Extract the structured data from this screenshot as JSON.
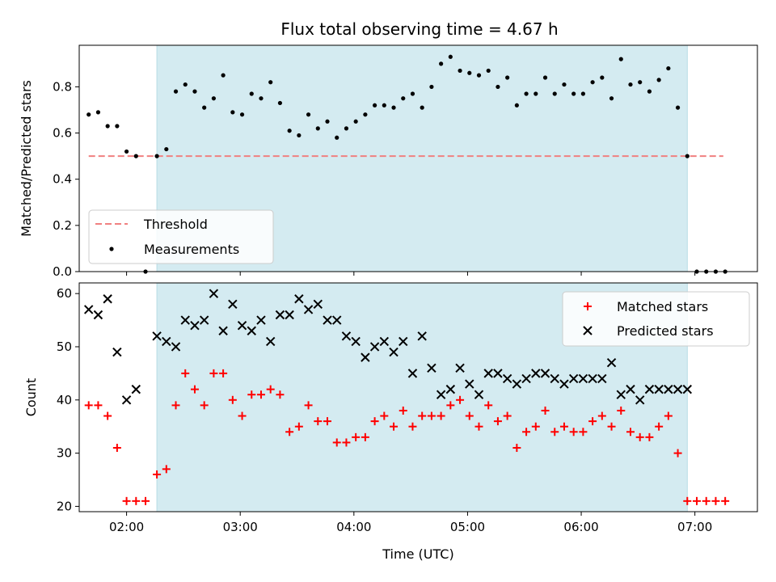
{
  "chart_data": [
    {
      "type": "scatter",
      "title": "Flux total observing time = 4.67 h",
      "xlabel": "",
      "ylabel": "Matched/Predicted stars",
      "xlim": [
        "01:35",
        "07:33"
      ],
      "ylim": [
        0,
        0.98
      ],
      "yticks": [
        "0.0",
        "0.2",
        "0.4",
        "0.6",
        "0.8"
      ],
      "xticks": [
        "02:00",
        "03:00",
        "04:00",
        "05:00",
        "06:00",
        "07:00"
      ],
      "observing_window": [
        "02:16",
        "06:56"
      ],
      "colors": {
        "window": "#d4ebf1",
        "threshold": "#f08080",
        "measurements": "#000000"
      },
      "legend": {
        "position": "lower-left",
        "entries": [
          "Threshold",
          "Measurements"
        ]
      },
      "threshold": {
        "name": "Threshold",
        "y": 0.5,
        "x_range": [
          "01:40",
          "07:15"
        ]
      },
      "series": [
        {
          "name": "Measurements",
          "x": [
            "01:40",
            "01:45",
            "01:50",
            "01:55",
            "02:00",
            "02:05",
            "02:10",
            "02:16",
            "02:21",
            "02:26",
            "02:31",
            "02:36",
            "02:41",
            "02:46",
            "02:51",
            "02:56",
            "03:01",
            "03:06",
            "03:11",
            "03:16",
            "03:21",
            "03:26",
            "03:31",
            "03:36",
            "03:41",
            "03:46",
            "03:51",
            "03:56",
            "04:01",
            "04:06",
            "04:11",
            "04:16",
            "04:21",
            "04:26",
            "04:31",
            "04:36",
            "04:41",
            "04:46",
            "04:51",
            "04:56",
            "05:01",
            "05:06",
            "05:11",
            "05:16",
            "05:21",
            "05:26",
            "05:31",
            "05:36",
            "05:41",
            "05:46",
            "05:51",
            "05:56",
            "06:01",
            "06:06",
            "06:11",
            "06:16",
            "06:21",
            "06:26",
            "06:31",
            "06:36",
            "06:41",
            "06:46",
            "06:51",
            "06:56",
            "07:01",
            "07:06",
            "07:11",
            "07:16"
          ],
          "y": [
            0.68,
            0.69,
            0.63,
            0.63,
            0.52,
            0.5,
            0.0,
            0.5,
            0.53,
            0.78,
            0.81,
            0.78,
            0.71,
            0.75,
            0.85,
            0.69,
            0.68,
            0.77,
            0.75,
            0.82,
            0.73,
            0.61,
            0.59,
            0.68,
            0.62,
            0.65,
            0.58,
            0.62,
            0.65,
            0.68,
            0.72,
            0.72,
            0.71,
            0.75,
            0.77,
            0.71,
            0.8,
            0.9,
            0.93,
            0.87,
            0.86,
            0.85,
            0.87,
            0.8,
            0.84,
            0.72,
            0.77,
            0.77,
            0.84,
            0.77,
            0.81,
            0.77,
            0.77,
            0.82,
            0.84,
            0.75,
            0.92,
            0.81,
            0.82,
            0.78,
            0.83,
            0.88,
            0.71,
            0.5,
            0.0,
            0.0,
            0.0,
            0.0
          ]
        }
      ]
    },
    {
      "type": "scatter",
      "title": "",
      "xlabel": "Time (UTC)",
      "ylabel": "Count",
      "xlim": [
        "01:35",
        "07:33"
      ],
      "ylim": [
        19,
        62
      ],
      "yticks": [
        "20",
        "30",
        "40",
        "50",
        "60"
      ],
      "xticks": [
        "02:00",
        "03:00",
        "04:00",
        "05:00",
        "06:00",
        "07:00"
      ],
      "observing_window": [
        "02:16",
        "06:56"
      ],
      "colors": {
        "window": "#d4ebf1",
        "matched": "#ff0000",
        "predicted": "#000000"
      },
      "legend": {
        "position": "top-right",
        "entries": [
          "Matched stars",
          "Predicted stars"
        ]
      },
      "series": [
        {
          "name": "Matched stars",
          "x": [
            "01:40",
            "01:45",
            "01:50",
            "01:55",
            "02:00",
            "02:05",
            "02:10",
            "02:16",
            "02:21",
            "02:26",
            "02:31",
            "02:36",
            "02:41",
            "02:46",
            "02:51",
            "02:56",
            "03:01",
            "03:06",
            "03:11",
            "03:16",
            "03:21",
            "03:26",
            "03:31",
            "03:36",
            "03:41",
            "03:46",
            "03:51",
            "03:56",
            "04:01",
            "04:06",
            "04:11",
            "04:16",
            "04:21",
            "04:26",
            "04:31",
            "04:36",
            "04:41",
            "04:46",
            "04:51",
            "04:56",
            "05:01",
            "05:06",
            "05:11",
            "05:16",
            "05:21",
            "05:26",
            "05:31",
            "05:36",
            "05:41",
            "05:46",
            "05:51",
            "05:56",
            "06:01",
            "06:06",
            "06:11",
            "06:16",
            "06:21",
            "06:26",
            "06:31",
            "06:36",
            "06:41",
            "06:46",
            "06:51",
            "06:56",
            "07:01",
            "07:06",
            "07:11",
            "07:16"
          ],
          "y": [
            39,
            39,
            37,
            31,
            21,
            21,
            21,
            26,
            27,
            39,
            45,
            42,
            39,
            45,
            45,
            40,
            37,
            41,
            41,
            42,
            41,
            34,
            35,
            39,
            36,
            36,
            32,
            32,
            33,
            33,
            36,
            37,
            35,
            38,
            35,
            37,
            37,
            37,
            39,
            40,
            37,
            35,
            39,
            36,
            37,
            31,
            34,
            35,
            38,
            34,
            35,
            34,
            34,
            36,
            37,
            35,
            38,
            34,
            33,
            33,
            35,
            37,
            30,
            21,
            21,
            21,
            21,
            21
          ]
        },
        {
          "name": "Predicted stars",
          "x": [
            "01:40",
            "01:45",
            "01:50",
            "01:55",
            "02:00",
            "02:05",
            "02:16",
            "02:21",
            "02:26",
            "02:31",
            "02:36",
            "02:41",
            "02:46",
            "02:51",
            "02:56",
            "03:01",
            "03:06",
            "03:11",
            "03:16",
            "03:21",
            "03:26",
            "03:31",
            "03:36",
            "03:41",
            "03:46",
            "03:51",
            "03:56",
            "04:01",
            "04:06",
            "04:11",
            "04:16",
            "04:21",
            "04:26",
            "04:31",
            "04:36",
            "04:41",
            "04:46",
            "04:51",
            "04:56",
            "05:01",
            "05:06",
            "05:11",
            "05:16",
            "05:21",
            "05:26",
            "05:31",
            "05:36",
            "05:41",
            "05:46",
            "05:51",
            "05:56",
            "06:01",
            "06:06",
            "06:11",
            "06:16",
            "06:21",
            "06:26",
            "06:31",
            "06:36",
            "06:41",
            "06:46",
            "06:51",
            "06:56"
          ],
          "y": [
            57,
            56,
            59,
            49,
            40,
            42,
            52,
            51,
            50,
            55,
            54,
            55,
            60,
            53,
            58,
            54,
            53,
            55,
            51,
            56,
            56,
            59,
            57,
            58,
            55,
            55,
            52,
            51,
            48,
            50,
            51,
            49,
            51,
            45,
            52,
            46,
            41,
            42,
            46,
            43,
            41,
            45,
            45,
            44,
            43,
            44,
            45,
            45,
            44,
            43,
            44,
            44,
            44,
            44,
            47,
            41,
            42,
            40,
            42,
            42,
            42,
            42,
            42
          ]
        }
      ]
    }
  ]
}
